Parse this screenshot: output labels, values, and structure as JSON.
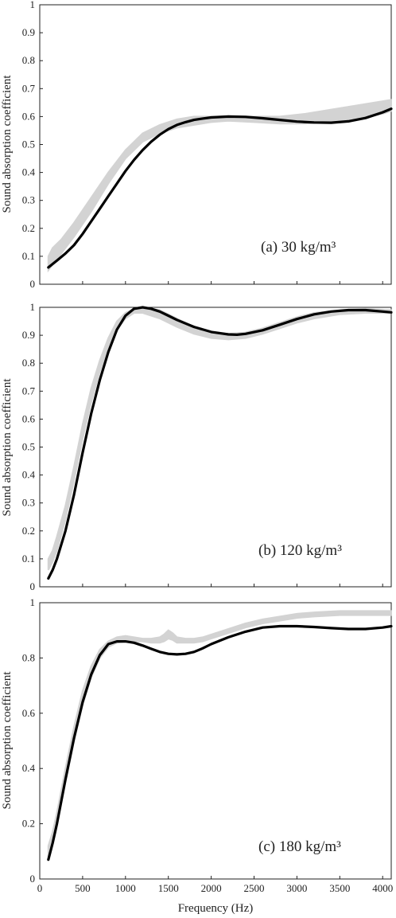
{
  "chart_data": [
    {
      "type": "line",
      "panel": "a",
      "annotation": "(a) 30 kg/m³",
      "xlabel": "",
      "ylabel": "Sound absorption coefficient",
      "xlim": [
        0,
        4100
      ],
      "ylim": [
        0,
        1
      ],
      "xticks": [
        500,
        1000,
        1500,
        2000,
        2500,
        3000,
        3500,
        4000
      ],
      "yticks": [
        "0",
        "0.1",
        "0.2",
        "0.3",
        "0.4",
        "0.5",
        "0.6",
        "0.7",
        "0.8",
        "0.9",
        "1"
      ],
      "show_x_tick_labels": false,
      "series": [
        {
          "kind": "measured-band",
          "color": "#d3d3d3",
          "x": [
            100,
            150,
            250,
            400,
            600,
            800,
            1000,
            1200,
            1400,
            1600,
            1800,
            2000,
            2200,
            2500,
            2800,
            3100,
            3400,
            3700,
            4000,
            4100
          ],
          "lower": [
            0.05,
            0.07,
            0.11,
            0.17,
            0.26,
            0.36,
            0.45,
            0.51,
            0.54,
            0.56,
            0.57,
            0.58,
            0.585,
            0.58,
            0.575,
            0.575,
            0.58,
            0.59,
            0.61,
            0.62
          ],
          "upper": [
            0.1,
            0.13,
            0.16,
            0.22,
            0.31,
            0.4,
            0.48,
            0.54,
            0.57,
            0.59,
            0.6,
            0.6,
            0.6,
            0.6,
            0.6,
            0.61,
            0.625,
            0.64,
            0.655,
            0.66
          ]
        },
        {
          "kind": "model",
          "color": "#000000",
          "x": [
            100,
            200,
            300,
            400,
            500,
            600,
            700,
            800,
            900,
            1000,
            1100,
            1200,
            1300,
            1400,
            1500,
            1600,
            1700,
            1800,
            1900,
            2000,
            2200,
            2400,
            2600,
            2800,
            3000,
            3200,
            3400,
            3600,
            3800,
            4000,
            4100
          ],
          "y": [
            0.06,
            0.085,
            0.11,
            0.14,
            0.18,
            0.225,
            0.27,
            0.315,
            0.36,
            0.405,
            0.445,
            0.48,
            0.51,
            0.535,
            0.555,
            0.57,
            0.58,
            0.588,
            0.593,
            0.597,
            0.6,
            0.599,
            0.594,
            0.588,
            0.582,
            0.579,
            0.578,
            0.583,
            0.595,
            0.615,
            0.628
          ]
        }
      ]
    },
    {
      "type": "line",
      "panel": "b",
      "annotation": "(b) 120 kg/m³",
      "xlabel": "",
      "ylabel": "Sound absorption coefficient",
      "xlim": [
        0,
        4100
      ],
      "ylim": [
        0,
        1
      ],
      "xticks": [
        500,
        1000,
        1500,
        2000,
        2500,
        3000,
        3500,
        4000
      ],
      "yticks": [
        "0",
        "0.1",
        "0.2",
        "0.3",
        "0.4",
        "0.5",
        "0.6",
        "0.7",
        "0.8",
        "0.9",
        "1"
      ],
      "show_x_tick_labels": false,
      "series": [
        {
          "kind": "measured-band",
          "color": "#d3d3d3",
          "x": [
            100,
            150,
            200,
            300,
            400,
            500,
            600,
            700,
            800,
            900,
            1000,
            1100,
            1200,
            1400,
            1600,
            1800,
            2000,
            2200,
            2400,
            2600,
            2800,
            3000,
            3200,
            3500,
            3800,
            4100
          ],
          "lower": [
            0.06,
            0.09,
            0.13,
            0.24,
            0.38,
            0.53,
            0.66,
            0.77,
            0.86,
            0.92,
            0.96,
            0.98,
            0.98,
            0.96,
            0.93,
            0.905,
            0.89,
            0.885,
            0.89,
            0.905,
            0.925,
            0.945,
            0.96,
            0.975,
            0.98,
            0.98
          ],
          "upper": [
            0.1,
            0.13,
            0.18,
            0.29,
            0.43,
            0.58,
            0.71,
            0.81,
            0.89,
            0.95,
            0.98,
            0.995,
            1.0,
            0.99,
            0.96,
            0.93,
            0.91,
            0.905,
            0.91,
            0.925,
            0.945,
            0.965,
            0.98,
            0.99,
            0.995,
            0.99
          ]
        },
        {
          "kind": "model",
          "color": "#000000",
          "x": [
            100,
            150,
            200,
            300,
            400,
            500,
            600,
            700,
            800,
            900,
            1000,
            1100,
            1200,
            1300,
            1400,
            1500,
            1600,
            1800,
            2000,
            2200,
            2300,
            2400,
            2600,
            2800,
            3000,
            3200,
            3400,
            3600,
            3800,
            4000,
            4100
          ],
          "y": [
            0.03,
            0.06,
            0.1,
            0.2,
            0.33,
            0.48,
            0.62,
            0.74,
            0.84,
            0.92,
            0.97,
            0.995,
            1.0,
            0.995,
            0.985,
            0.97,
            0.955,
            0.93,
            0.912,
            0.903,
            0.902,
            0.905,
            0.918,
            0.938,
            0.958,
            0.975,
            0.985,
            0.99,
            0.99,
            0.985,
            0.982
          ]
        }
      ]
    },
    {
      "type": "line",
      "panel": "c",
      "annotation": "(c) 180 kg/m³",
      "xlabel": "Frequency (Hz)",
      "ylabel": "Sound absorption coefficient",
      "xlim": [
        0,
        4100
      ],
      "ylim": [
        0,
        1
      ],
      "xticks": [
        0,
        500,
        1000,
        1500,
        2000,
        2500,
        3000,
        3500,
        4000
      ],
      "xtick_labels": [
        "0",
        "500",
        "1000",
        "1500",
        "2000",
        "2500",
        "3000",
        "3500",
        "4000"
      ],
      "yticks": [
        "0",
        "0.2",
        "0.4",
        "0.6",
        "0.8",
        "1"
      ],
      "show_x_tick_labels": true,
      "series": [
        {
          "kind": "measured-band",
          "color": "#d3d3d3",
          "x": [
            100,
            150,
            200,
            300,
            400,
            500,
            600,
            700,
            800,
            900,
            1000,
            1100,
            1200,
            1300,
            1400,
            1450,
            1500,
            1550,
            1600,
            1700,
            1800,
            1900,
            2000,
            2200,
            2400,
            2600,
            2800,
            3000,
            3200,
            3500,
            3800,
            4100
          ],
          "lower": [
            0.08,
            0.13,
            0.2,
            0.35,
            0.5,
            0.63,
            0.73,
            0.8,
            0.84,
            0.855,
            0.86,
            0.86,
            0.86,
            0.855,
            0.855,
            0.86,
            0.87,
            0.865,
            0.855,
            0.855,
            0.855,
            0.86,
            0.87,
            0.89,
            0.91,
            0.925,
            0.935,
            0.945,
            0.95,
            0.955,
            0.955,
            0.955
          ],
          "upper": [
            0.12,
            0.17,
            0.24,
            0.4,
            0.55,
            0.68,
            0.77,
            0.83,
            0.86,
            0.875,
            0.88,
            0.875,
            0.87,
            0.87,
            0.875,
            0.885,
            0.9,
            0.89,
            0.875,
            0.87,
            0.87,
            0.875,
            0.885,
            0.905,
            0.925,
            0.94,
            0.95,
            0.96,
            0.965,
            0.97,
            0.97,
            0.97
          ]
        },
        {
          "kind": "model",
          "color": "#000000",
          "x": [
            100,
            150,
            200,
            300,
            400,
            500,
            600,
            700,
            800,
            900,
            1000,
            1100,
            1200,
            1300,
            1400,
            1500,
            1600,
            1700,
            1800,
            1900,
            2000,
            2200,
            2400,
            2600,
            2800,
            3000,
            3200,
            3400,
            3600,
            3800,
            4000,
            4100
          ],
          "y": [
            0.07,
            0.13,
            0.2,
            0.36,
            0.51,
            0.64,
            0.74,
            0.81,
            0.85,
            0.86,
            0.86,
            0.855,
            0.845,
            0.833,
            0.822,
            0.815,
            0.813,
            0.815,
            0.822,
            0.835,
            0.85,
            0.875,
            0.895,
            0.91,
            0.915,
            0.915,
            0.912,
            0.908,
            0.905,
            0.905,
            0.91,
            0.915
          ]
        }
      ]
    }
  ]
}
